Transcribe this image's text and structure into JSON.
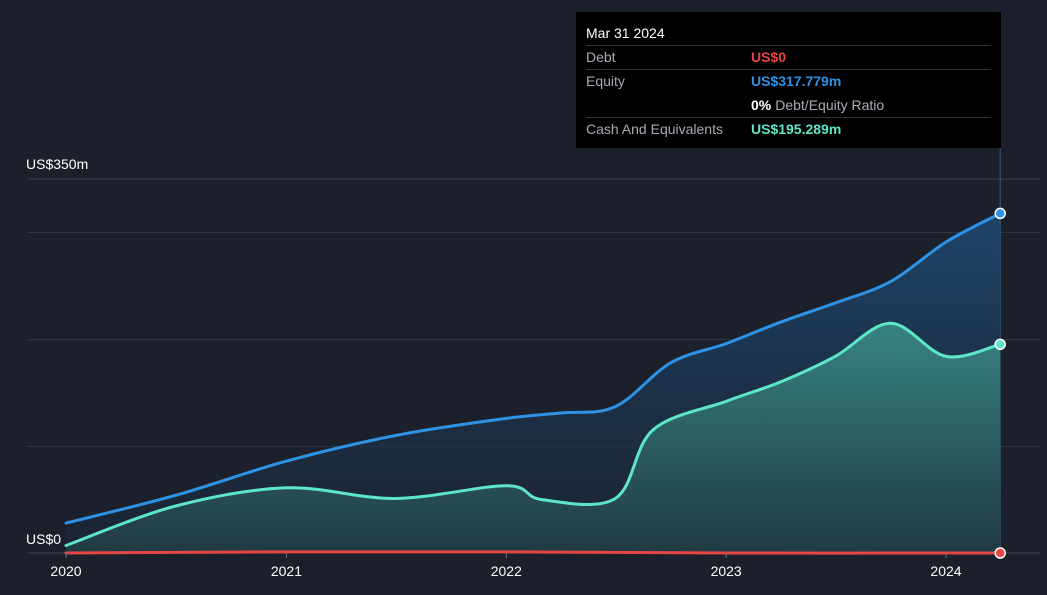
{
  "tooltip": {
    "date": "Mar 31 2024",
    "rows": [
      {
        "label": "Debt",
        "value": "US$0",
        "color": "#e84545"
      },
      {
        "label": "Equity",
        "value": "US$317.779m",
        "color": "#2e93e6"
      },
      {
        "ratio_value": "0%",
        "ratio_label": "Debt/Equity Ratio"
      },
      {
        "label": "Cash And Equivalents",
        "value": "US$195.289m",
        "color": "#5ee6c8"
      }
    ]
  },
  "chart_data": {
    "type": "area",
    "y_labels": {
      "top": "US$350m",
      "bottom": "US$0"
    },
    "ylim": [
      0,
      350
    ],
    "x_ticks": [
      "2020",
      "2021",
      "2022",
      "2023",
      "2024"
    ],
    "grid": true,
    "series": [
      {
        "name": "Debt",
        "color": "#e84545",
        "points": [
          [
            "2020-01-01",
            0
          ],
          [
            "2021-01-01",
            1
          ],
          [
            "2022-01-01",
            1
          ],
          [
            "2023-01-01",
            0
          ],
          [
            "2024-03-31",
            0
          ]
        ]
      },
      {
        "name": "Equity",
        "color": "#2e93e6",
        "points": [
          [
            "2020-01-01",
            28
          ],
          [
            "2020-07-01",
            54
          ],
          [
            "2021-01-01",
            86
          ],
          [
            "2021-07-01",
            110
          ],
          [
            "2022-01-01",
            126
          ],
          [
            "2022-04-01",
            131
          ],
          [
            "2022-07-01",
            137
          ],
          [
            "2022-10-01",
            178
          ],
          [
            "2023-01-01",
            196
          ],
          [
            "2023-04-01",
            216
          ],
          [
            "2023-07-01",
            234
          ],
          [
            "2023-10-01",
            254
          ],
          [
            "2024-01-01",
            291
          ],
          [
            "2024-03-31",
            317.779
          ]
        ]
      },
      {
        "name": "Cash And Equivalents",
        "color": "#5ee6c8",
        "points": [
          [
            "2020-01-01",
            7
          ],
          [
            "2020-07-01",
            44
          ],
          [
            "2021-01-01",
            61
          ],
          [
            "2021-07-01",
            51
          ],
          [
            "2022-01-01",
            63
          ],
          [
            "2022-03-01",
            50
          ],
          [
            "2022-07-01",
            51
          ],
          [
            "2022-09-01",
            115
          ],
          [
            "2023-01-01",
            142
          ],
          [
            "2023-04-01",
            160
          ],
          [
            "2023-07-01",
            184
          ],
          [
            "2023-10-01",
            215
          ],
          [
            "2024-01-01",
            184
          ],
          [
            "2024-03-31",
            195.289
          ]
        ]
      }
    ]
  }
}
